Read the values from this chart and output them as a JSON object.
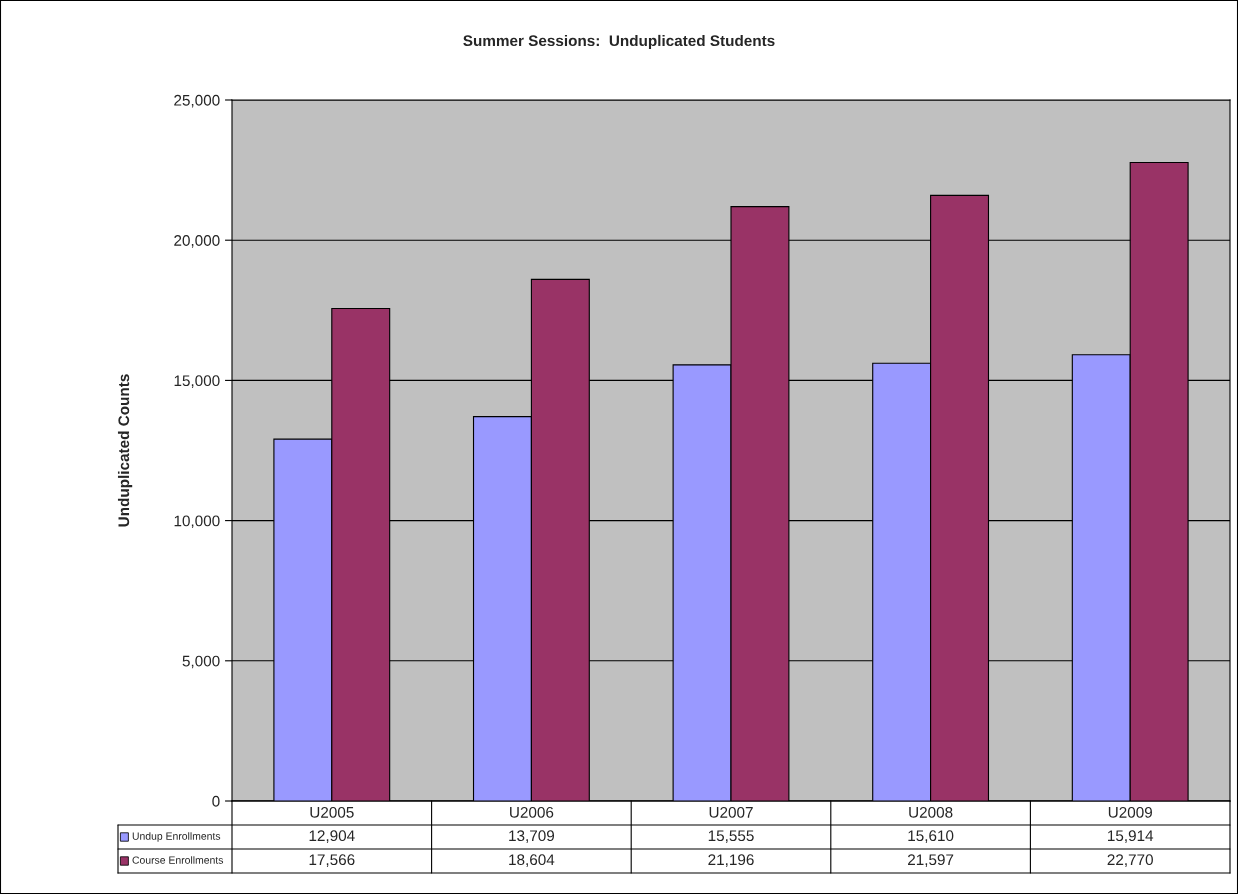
{
  "chart_data": {
    "type": "bar",
    "title": "Summer Sessions:  Unduplicated Students",
    "ylabel": "Unduplicated Counts",
    "categories": [
      "U2005",
      "U2006",
      "U2007",
      "U2008",
      "U2009"
    ],
    "series": [
      {
        "name": "Undup Enrollments",
        "color": "#9999ff",
        "values": [
          12904,
          13709,
          15555,
          15610,
          15914
        ],
        "value_labels": [
          "12,904",
          "13,709",
          "15,555",
          "15,610",
          "15,914"
        ]
      },
      {
        "name": "Course Enrollments",
        "color": "#993366",
        "values": [
          17566,
          18604,
          21196,
          21597,
          22770
        ],
        "value_labels": [
          "17,566",
          "18,604",
          "21,196",
          "21,597",
          "22,770"
        ]
      }
    ],
    "ylim": [
      0,
      25000
    ],
    "yticks": [
      0,
      {
        "value": 5000,
        "label": "5,000"
      },
      {
        "value": 10000,
        "label": "10,000"
      },
      {
        "value": 15000,
        "label": "15,000"
      },
      {
        "value": 20000,
        "label": "20,000"
      },
      {
        "value": 25000,
        "label": "25,000"
      }
    ],
    "grid": "y",
    "legend": "bottom"
  }
}
